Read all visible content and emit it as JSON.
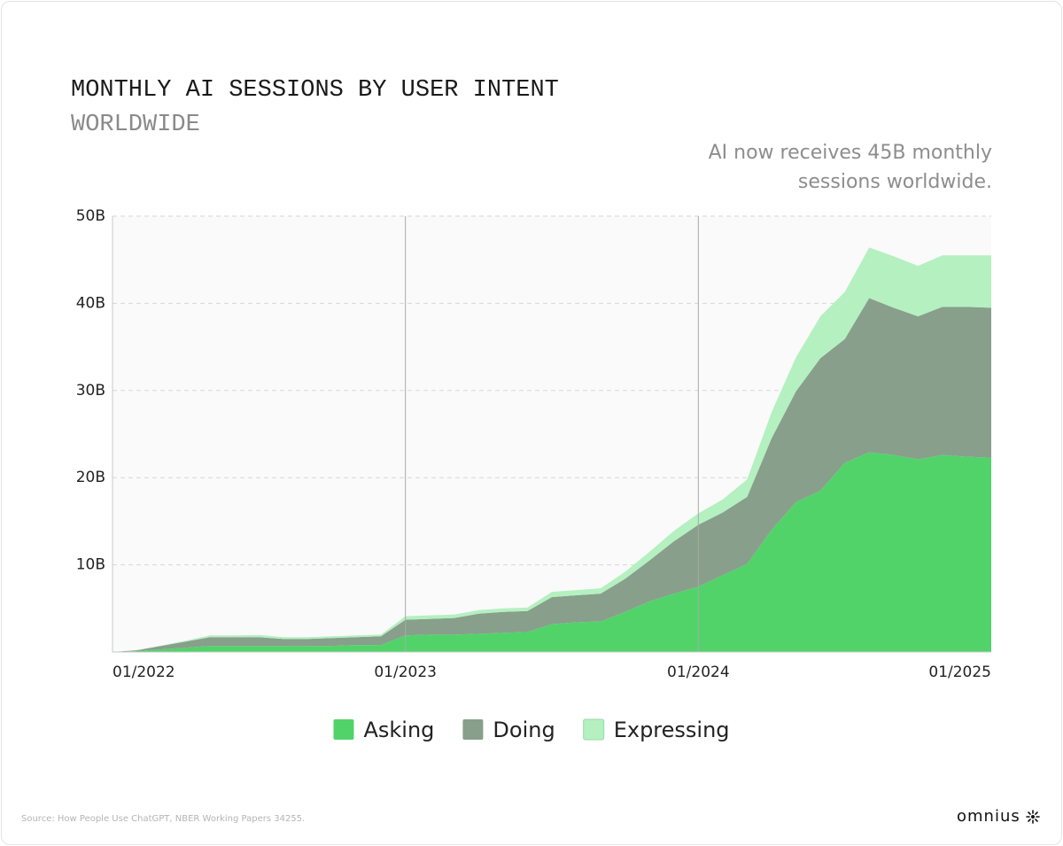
{
  "chart_data": {
    "type": "area",
    "stacked": true,
    "title": "MONTHLY AI SESSIONS BY USER INTENT",
    "subtitle": "WORLDWIDE",
    "annotation": "AI now receives 45B monthly sessions worldwide.",
    "source": "Source: How People Use ChatGPT, NBER Working Papers 34255.",
    "categories": [
      "01/2022",
      null,
      null,
      null,
      null,
      null,
      null,
      null,
      null,
      null,
      null,
      null,
      "01/2023",
      null,
      null,
      null,
      null,
      null,
      null,
      null,
      null,
      null,
      null,
      null,
      "01/2024",
      null,
      null,
      null,
      null,
      null,
      null,
      null,
      null,
      null,
      null,
      null,
      "01/2025"
    ],
    "series": [
      {
        "name": "Asking",
        "color": "#51d36a",
        "values": [
          0,
          0.1,
          0.3,
          0.5,
          0.7,
          0.7,
          0.7,
          0.7,
          0.7,
          0.7,
          0.8,
          0.8,
          1.9,
          2.0,
          2.0,
          2.1,
          2.2,
          2.3,
          3.2,
          3.4,
          3.5,
          4.6,
          5.8,
          6.7,
          7.5,
          8.8,
          10.1,
          14.0,
          17.2,
          18.5,
          21.7,
          22.9,
          22.6,
          22.1,
          22.6,
          22.4,
          22.3
        ]
      },
      {
        "name": "Doing",
        "color": "#889f8b",
        "values": [
          0,
          0.1,
          0.4,
          0.7,
          1.0,
          1.0,
          1.0,
          0.8,
          0.8,
          0.9,
          0.9,
          1.0,
          1.8,
          1.8,
          1.9,
          2.3,
          2.4,
          2.4,
          3.1,
          3.1,
          3.2,
          3.8,
          4.7,
          6.0,
          7.1,
          7.2,
          7.7,
          10.5,
          12.7,
          15.2,
          14.2,
          17.7,
          16.9,
          16.4,
          17.0,
          17.2,
          17.2
        ]
      },
      {
        "name": "Expressing",
        "color": "#b4f0c0",
        "values": [
          0,
          0.02,
          0.05,
          0.1,
          0.2,
          0.2,
          0.25,
          0.2,
          0.2,
          0.2,
          0.2,
          0.2,
          0.4,
          0.4,
          0.4,
          0.4,
          0.4,
          0.4,
          0.6,
          0.6,
          0.6,
          0.8,
          1.0,
          1.2,
          1.3,
          1.5,
          2.0,
          3.0,
          3.9,
          4.8,
          5.4,
          5.8,
          5.9,
          5.8,
          5.9,
          5.9,
          6.0
        ]
      }
    ],
    "ylim": [
      0,
      50
    ],
    "yticks": [
      {
        "value": 10,
        "label": "10B"
      },
      {
        "value": 20,
        "label": "20B"
      },
      {
        "value": 30,
        "label": "30B"
      },
      {
        "value": 40,
        "label": "40B"
      },
      {
        "value": 50,
        "label": "50B"
      }
    ],
    "grid": true
  },
  "logo": "omnius"
}
